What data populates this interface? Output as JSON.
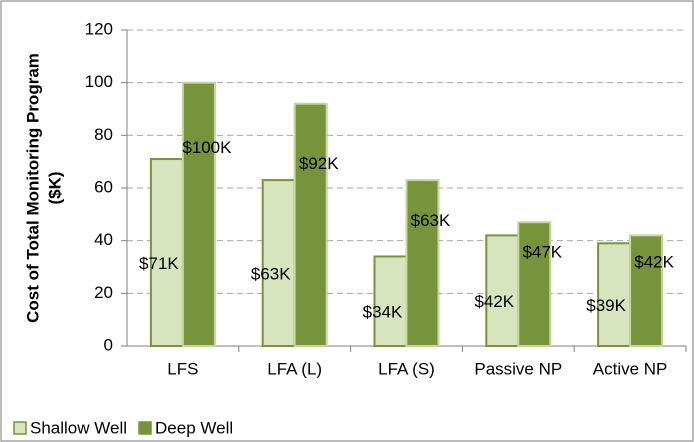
{
  "chart_data": {
    "type": "bar",
    "y_label": [
      "Cost of Total Monitoring Program",
      "($K)"
    ],
    "categories": [
      "LFS",
      "LFA (L)",
      "LFA (S)",
      "Passive NP",
      "Active NP"
    ],
    "series": [
      {
        "name": "Shallow Well",
        "color": "#d7e4bd",
        "edge": "#77933c",
        "values": [
          71,
          63,
          34,
          42,
          39
        ],
        "value_labels": [
          "$71K",
          "$63K",
          "$34K",
          "$42K",
          "$39K"
        ]
      },
      {
        "name": "Deep Well",
        "color": "#77933c",
        "edge": "#c3d69b",
        "values": [
          100,
          92,
          63,
          47,
          42
        ],
        "value_labels": [
          "$100K",
          "$92K",
          "$63K",
          "$47K",
          "$42K"
        ]
      }
    ],
    "ylim": [
      0,
      120
    ],
    "yticks": [
      0,
      20,
      40,
      60,
      80,
      100,
      120
    ],
    "grid": true,
    "legend": "bottom-left"
  }
}
